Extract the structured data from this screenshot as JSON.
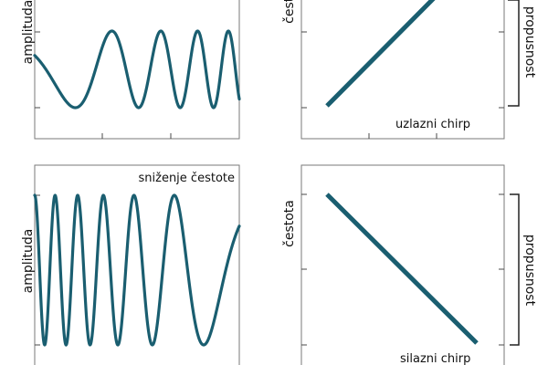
{
  "style": {
    "wave_color": "#1a5e70"
  },
  "chart_data": [
    {
      "type": "line",
      "panel": "up-signal",
      "title": "",
      "xlabel": "",
      "ylabel": "amplituda",
      "annotation": "",
      "signal": {
        "kind": "chirp",
        "direction": "up",
        "freq_start": 0.9,
        "freq_end": 7.5,
        "phase0": 1.2,
        "samples": 600
      },
      "xlim": [
        0,
        1
      ],
      "ylim": [
        -1,
        1
      ]
    },
    {
      "type": "line",
      "panel": "up-frequency",
      "title": "",
      "xlabel": "",
      "ylabel": "čestota",
      "annotation": "uzlazni chirp",
      "bracket_label": "propusnost",
      "x": [
        0,
        1
      ],
      "y": [
        0,
        1
      ],
      "xlim": [
        0,
        1
      ],
      "ylim": [
        0,
        1
      ]
    },
    {
      "type": "line",
      "panel": "down-signal",
      "title": "",
      "xlabel": "",
      "ylabel": "amplituda",
      "annotation": "sniženje čestote",
      "signal": {
        "kind": "chirp",
        "direction": "down",
        "freq_start": 10.5,
        "freq_end": 1.2,
        "phase0": 0,
        "samples": 600
      },
      "xlim": [
        0,
        1
      ],
      "ylim": [
        -1,
        1
      ]
    },
    {
      "type": "line",
      "panel": "down-frequency",
      "title": "",
      "xlabel": "",
      "ylabel": "čestota",
      "annotation": "silazni chirp",
      "bracket_label": "propusnost",
      "x": [
        0,
        1
      ],
      "y": [
        1,
        0
      ],
      "xlim": [
        0,
        1
      ],
      "ylim": [
        0,
        1
      ]
    }
  ]
}
